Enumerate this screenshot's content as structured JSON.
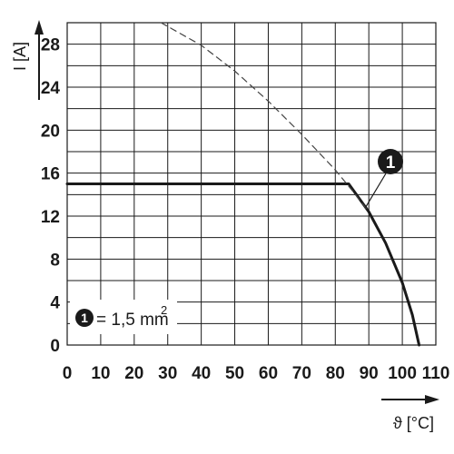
{
  "chart_data": {
    "type": "line",
    "title": "",
    "xlabel": "ϑ [°C]",
    "ylabel": "I [A]",
    "xlim": [
      0,
      110
    ],
    "ylim": [
      0,
      30
    ],
    "x_ticks": [
      "0",
      "10",
      "20",
      "30",
      "40",
      "50",
      "60",
      "70",
      "80",
      "90",
      "100",
      "110"
    ],
    "y_ticks": [
      "0",
      "4",
      "8",
      "12",
      "16",
      "20",
      "24",
      "28"
    ],
    "x_tick_values": [
      0,
      10,
      20,
      30,
      40,
      50,
      60,
      70,
      80,
      90,
      100,
      110
    ],
    "y_tick_values": [
      0,
      4,
      8,
      12,
      16,
      20,
      24,
      28
    ],
    "grid": true,
    "x_grid_step": 10,
    "y_grid_step": 2,
    "series": [
      {
        "style": "solid",
        "color": "#1a1a1a",
        "points": [
          [
            0,
            15
          ],
          [
            84,
            15
          ],
          [
            90,
            12.4
          ],
          [
            95,
            9.5
          ],
          [
            100,
            5.8
          ],
          [
            103,
            2.8
          ],
          [
            105,
            0
          ]
        ]
      },
      {
        "style": "dashed",
        "color": "#444444",
        "points": [
          [
            28,
            30
          ],
          [
            40,
            27.9
          ],
          [
            50,
            25.5
          ],
          [
            60,
            22.7
          ],
          [
            70,
            19.6
          ],
          [
            80,
            16.3
          ],
          [
            85,
            14.4
          ],
          [
            90,
            12.4
          ]
        ]
      }
    ],
    "annotation": {
      "marker": "1",
      "target": [
        89,
        12.8
      ]
    },
    "legend": {
      "placement": "bottom-left",
      "marker": "1",
      "text": "= 1,5 mm",
      "superscript": "2"
    }
  }
}
